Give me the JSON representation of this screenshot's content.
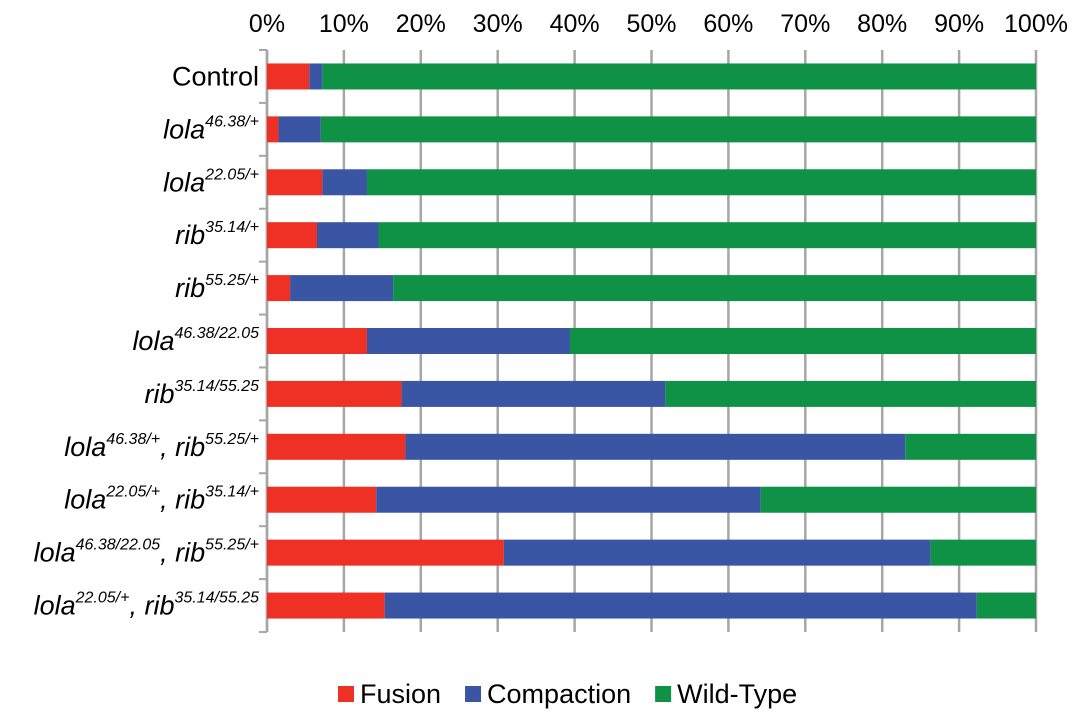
{
  "chart_data": {
    "type": "bar",
    "orientation": "horizontal",
    "stacked": true,
    "percent_stacked": true,
    "categories": [
      {
        "parts": [
          {
            "text": "Control",
            "style": "normal",
            "sup": false
          }
        ]
      },
      {
        "parts": [
          {
            "text": "lola",
            "style": "italic",
            "sup": false
          },
          {
            "text": "46.38/+",
            "style": "italic",
            "sup": true
          }
        ]
      },
      {
        "parts": [
          {
            "text": "lola",
            "style": "italic",
            "sup": false
          },
          {
            "text": "22.05/+",
            "style": "italic",
            "sup": true
          }
        ]
      },
      {
        "parts": [
          {
            "text": "rib",
            "style": "italic",
            "sup": false
          },
          {
            "text": "35.14/+",
            "style": "italic",
            "sup": true
          }
        ]
      },
      {
        "parts": [
          {
            "text": "rib",
            "style": "italic",
            "sup": false
          },
          {
            "text": "55.25/+",
            "style": "italic",
            "sup": true
          }
        ]
      },
      {
        "parts": [
          {
            "text": "lola",
            "style": "italic",
            "sup": false
          },
          {
            "text": "46.38/22.05",
            "style": "italic",
            "sup": true
          }
        ]
      },
      {
        "parts": [
          {
            "text": "rib",
            "style": "italic",
            "sup": false
          },
          {
            "text": "35.14/55.25",
            "style": "italic",
            "sup": true
          }
        ]
      },
      {
        "parts": [
          {
            "text": "lola",
            "style": "italic",
            "sup": false
          },
          {
            "text": "46.38/+",
            "style": "italic",
            "sup": true
          },
          {
            "text": ", ",
            "style": "italic",
            "sup": false
          },
          {
            "text": "rib",
            "style": "italic",
            "sup": false
          },
          {
            "text": "55.25/+",
            "style": "italic",
            "sup": true
          }
        ]
      },
      {
        "parts": [
          {
            "text": "lola",
            "style": "italic",
            "sup": false
          },
          {
            "text": "22.05/+",
            "style": "italic",
            "sup": true
          },
          {
            "text": ", ",
            "style": "italic",
            "sup": false
          },
          {
            "text": "rib",
            "style": "italic",
            "sup": false
          },
          {
            "text": "35.14/+",
            "style": "italic",
            "sup": true
          }
        ]
      },
      {
        "parts": [
          {
            "text": "lola",
            "style": "italic",
            "sup": false
          },
          {
            "text": "46.38/22.05",
            "style": "italic",
            "sup": true
          },
          {
            "text": ", ",
            "style": "italic",
            "sup": false
          },
          {
            "text": "rib",
            "style": "italic",
            "sup": false
          },
          {
            "text": "55.25/+",
            "style": "italic",
            "sup": true
          }
        ]
      },
      {
        "parts": [
          {
            "text": "lola",
            "style": "italic",
            "sup": false
          },
          {
            "text": "22.05/+",
            "style": "italic",
            "sup": true
          },
          {
            "text": ", ",
            "style": "italic",
            "sup": false
          },
          {
            "text": "rib",
            "style": "italic",
            "sup": false
          },
          {
            "text": "35.14/55.25",
            "style": "italic",
            "sup": true
          }
        ]
      }
    ],
    "series": [
      {
        "name": "Fusion",
        "color": "#ee3124",
        "values": [
          5.5,
          1.5,
          7.2,
          6.5,
          3.0,
          13.0,
          17.5,
          18.0,
          14.2,
          30.8,
          15.3
        ]
      },
      {
        "name": "Compaction",
        "color": "#3b55a5",
        "values": [
          1.7,
          5.5,
          5.8,
          8.0,
          13.4,
          26.4,
          34.3,
          65.0,
          50.0,
          55.5,
          77.0
        ]
      },
      {
        "name": "Wild-Type",
        "color": "#0f9246",
        "values": [
          92.8,
          93.0,
          87.0,
          85.5,
          83.6,
          60.6,
          48.2,
          17.0,
          35.8,
          13.7,
          7.7
        ]
      }
    ],
    "x_ticks": [
      "0%",
      "10%",
      "20%",
      "30%",
      "40%",
      "50%",
      "60%",
      "70%",
      "80%",
      "90%",
      "100%"
    ],
    "xlim": [
      0,
      100
    ],
    "x_axis_position": "top",
    "grid": true,
    "legend_position": "bottom"
  }
}
